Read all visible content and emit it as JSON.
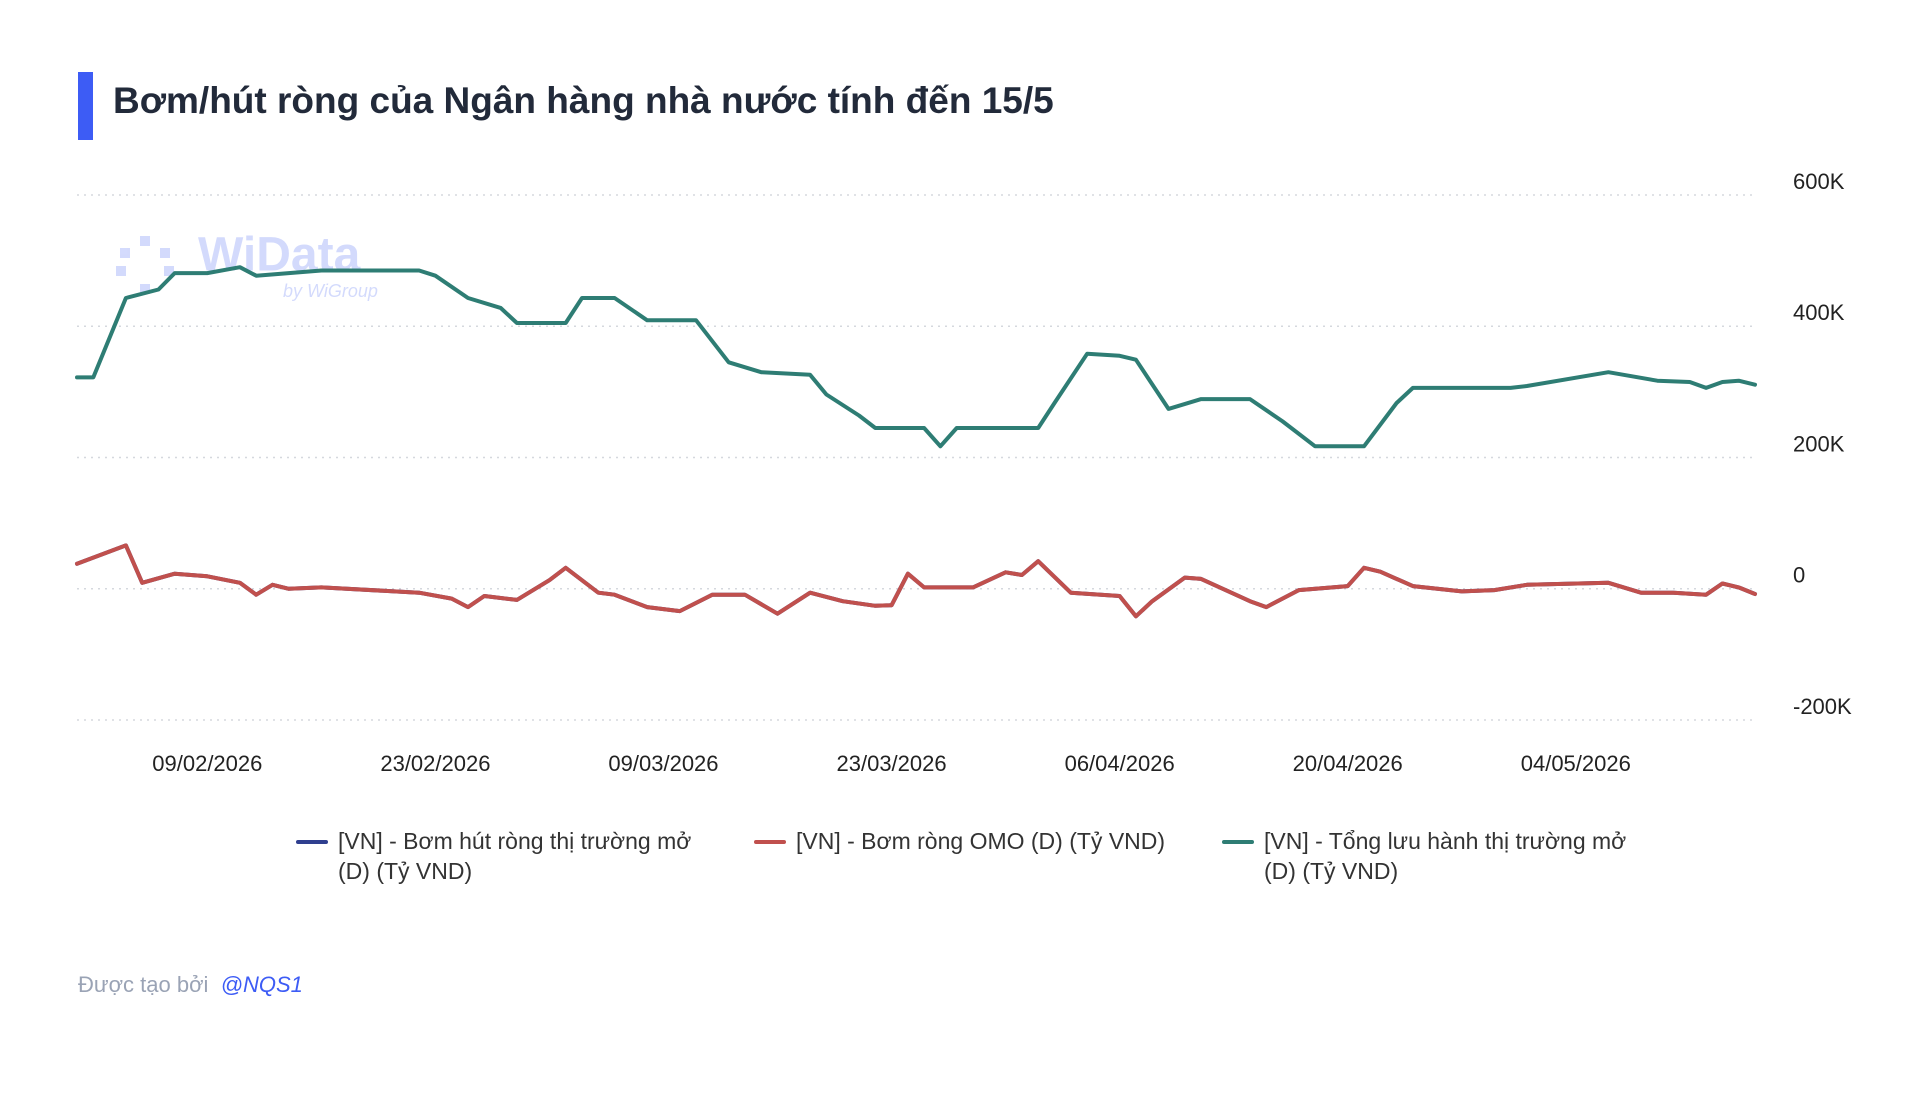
{
  "header": {
    "title": "Bơm/hút ròng của Ngân hàng nhà nước tính đến 15/5"
  },
  "watermark": {
    "brand": "WiData",
    "by": "by WiGroup"
  },
  "chart_data": {
    "type": "line",
    "xlim": [
      "01/02/2026",
      "15/05/2026"
    ],
    "xticks": [
      "09/02/2026",
      "23/02/2026",
      "09/03/2026",
      "23/03/2026",
      "06/04/2026",
      "20/04/2026",
      "04/05/2026"
    ],
    "ylim": [
      -200000,
      600000
    ],
    "yticks": [
      {
        "value": -200000,
        "label": "-200K"
      },
      0,
      {
        "value": 200000,
        "label": "200K"
      },
      {
        "value": 400000,
        "label": "400K"
      },
      {
        "value": 600000,
        "label": "600K"
      }
    ],
    "grid": true,
    "series": [
      {
        "name": "[VN] - Bơm hút ròng thị trường mở (D) (Tỷ VND)",
        "color": "#2f3f8f",
        "x": [
          "01/02/2026",
          "04/02/2026",
          "05/02/2026",
          "07/02/2026",
          "09/02/2026",
          "11/02/2026",
          "12/02/2026",
          "13/02/2026",
          "14/02/2026",
          "16/02/2026",
          "22/02/2026",
          "24/02/2026",
          "25/02/2026",
          "26/02/2026",
          "28/02/2026",
          "02/03/2026",
          "03/03/2026",
          "05/03/2026",
          "06/03/2026",
          "08/03/2026",
          "10/03/2026",
          "12/03/2026",
          "14/03/2026",
          "16/03/2026",
          "18/03/2026",
          "20/03/2026",
          "22/03/2026",
          "23/03/2026",
          "24/03/2026",
          "25/03/2026",
          "28/03/2026",
          "30/03/2026",
          "31/03/2026",
          "01/04/2026",
          "03/04/2026",
          "06/04/2026",
          "07/04/2026",
          "08/04/2026",
          "10/04/2026",
          "11/04/2026",
          "14/04/2026",
          "15/04/2026",
          "17/04/2026",
          "20/04/2026",
          "21/04/2026",
          "22/04/2026",
          "24/04/2026",
          "27/04/2026",
          "29/04/2026",
          "01/05/2026",
          "06/05/2026",
          "08/05/2026",
          "10/05/2026",
          "12/05/2026",
          "13/05/2026",
          "14/05/2026",
          "15/05/2026"
        ],
        "values": [
          38000,
          66000,
          9000,
          23000,
          19000,
          9000,
          -9000,
          6000,
          0,
          2000,
          -6000,
          -15000,
          -28000,
          -11000,
          -17000,
          13000,
          32000,
          -6000,
          -9000,
          -28000,
          -34000,
          -9000,
          -9000,
          -38000,
          -6000,
          -19000,
          -26000,
          -25000,
          23000,
          2000,
          2000,
          25000,
          21000,
          42000,
          -6000,
          -11000,
          -42000,
          -19000,
          17000,
          15000,
          -19000,
          -28000,
          -2000,
          4000,
          32000,
          26000,
          4000,
          -4000,
          -2000,
          6000,
          9000,
          -6000,
          -6000,
          -9000,
          8000,
          2000,
          -8000
        ]
      },
      {
        "name": "[VN] - Bơm ròng OMO (D) (Tỷ VND)",
        "color": "#c0504d",
        "x": [
          "01/02/2026",
          "04/02/2026",
          "05/02/2026",
          "07/02/2026",
          "09/02/2026",
          "11/02/2026",
          "12/02/2026",
          "13/02/2026",
          "14/02/2026",
          "16/02/2026",
          "22/02/2026",
          "24/02/2026",
          "25/02/2026",
          "26/02/2026",
          "28/02/2026",
          "02/03/2026",
          "03/03/2026",
          "05/03/2026",
          "06/03/2026",
          "08/03/2026",
          "10/03/2026",
          "12/03/2026",
          "14/03/2026",
          "16/03/2026",
          "18/03/2026",
          "20/03/2026",
          "22/03/2026",
          "23/03/2026",
          "24/03/2026",
          "25/03/2026",
          "28/03/2026",
          "30/03/2026",
          "31/03/2026",
          "01/04/2026",
          "03/04/2026",
          "06/04/2026",
          "07/04/2026",
          "08/04/2026",
          "10/04/2026",
          "11/04/2026",
          "14/04/2026",
          "15/04/2026",
          "17/04/2026",
          "20/04/2026",
          "21/04/2026",
          "22/04/2026",
          "24/04/2026",
          "27/04/2026",
          "29/04/2026",
          "01/05/2026",
          "06/05/2026",
          "08/05/2026",
          "10/05/2026",
          "12/05/2026",
          "13/05/2026",
          "14/05/2026",
          "15/05/2026"
        ],
        "values": [
          38000,
          66000,
          9000,
          23000,
          19000,
          9000,
          -9000,
          6000,
          0,
          2000,
          -6000,
          -15000,
          -28000,
          -11000,
          -17000,
          13000,
          32000,
          -6000,
          -9000,
          -28000,
          -34000,
          -9000,
          -9000,
          -38000,
          -6000,
          -19000,
          -26000,
          -25000,
          23000,
          2000,
          2000,
          25000,
          21000,
          42000,
          -6000,
          -11000,
          -42000,
          -19000,
          17000,
          15000,
          -19000,
          -28000,
          -2000,
          4000,
          32000,
          26000,
          4000,
          -4000,
          -2000,
          6000,
          9000,
          -6000,
          -6000,
          -9000,
          8000,
          2000,
          -8000
        ]
      },
      {
        "name": "[VN] - Tổng lưu hành thị trường mở (D) (Tỷ VND)",
        "color": "#2e7d74",
        "x": [
          "01/02/2026",
          "02/02/2026",
          "04/02/2026",
          "06/02/2026",
          "07/02/2026",
          "09/02/2026",
          "11/02/2026",
          "12/02/2026",
          "14/02/2026",
          "16/02/2026",
          "22/02/2026",
          "23/02/2026",
          "25/02/2026",
          "27/02/2026",
          "28/02/2026",
          "03/03/2026",
          "04/03/2026",
          "06/03/2026",
          "08/03/2026",
          "11/03/2026",
          "13/03/2026",
          "15/03/2026",
          "18/03/2026",
          "19/03/2026",
          "21/03/2026",
          "22/03/2026",
          "25/03/2026",
          "26/03/2026",
          "27/03/2026",
          "01/04/2026",
          "02/04/2026",
          "04/04/2026",
          "06/04/2026",
          "07/04/2026",
          "09/04/2026",
          "11/04/2026",
          "14/04/2026",
          "16/04/2026",
          "18/04/2026",
          "21/04/2026",
          "23/04/2026",
          "24/04/2026",
          "30/04/2026",
          "01/05/2026",
          "06/05/2026",
          "09/05/2026",
          "11/05/2026",
          "12/05/2026",
          "13/05/2026",
          "14/05/2026",
          "15/05/2026"
        ],
        "values": [
          322000,
          322000,
          443000,
          456000,
          481000,
          481000,
          490000,
          477000,
          481000,
          485000,
          485000,
          477000,
          443000,
          428000,
          405000,
          405000,
          443000,
          443000,
          409000,
          409000,
          345000,
          330000,
          326000,
          296000,
          264000,
          245000,
          245000,
          217000,
          245000,
          245000,
          283000,
          358000,
          355000,
          349000,
          274000,
          289000,
          289000,
          255000,
          217000,
          217000,
          283000,
          306000,
          306000,
          309000,
          330000,
          317000,
          315000,
          306000,
          315000,
          317000,
          311000
        ]
      }
    ]
  },
  "footer": {
    "prefix": "Được tạo bởi",
    "author": "@NQS1"
  }
}
